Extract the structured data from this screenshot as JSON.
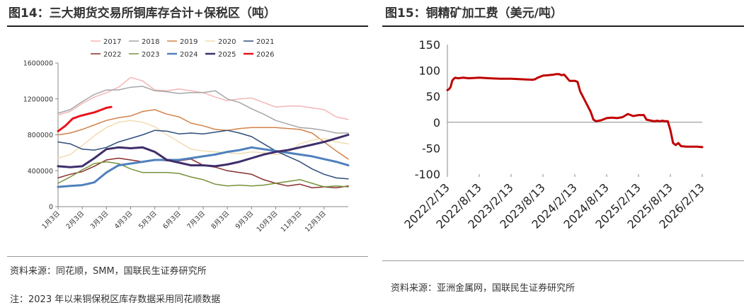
{
  "left": {
    "title": "图14：三大期货交易所铜库存合计+保税区（吨）",
    "source": "资料来源：同花顺，SMM，国联民生证券研究所",
    "note": "注：2023 年以来铜保税区库存数据采用同花顺数据",
    "chart_data": {
      "type": "line",
      "title": "",
      "xlabel": "",
      "ylabel": "",
      "ylim": [
        0,
        1600000
      ],
      "yticks": [
        0,
        400000,
        800000,
        1200000,
        1600000
      ],
      "ytick_labels": [
        "0",
        "400000",
        "800000",
        "1200000",
        "1600000"
      ],
      "xlim": [
        0,
        12
      ],
      "xticks": [
        0,
        1,
        2,
        3,
        4,
        5,
        6,
        7,
        8,
        9,
        10,
        11
      ],
      "xtick_labels": [
        "1月3日",
        "2月3日",
        "3月3日",
        "4月3日",
        "5月3日",
        "6月3日",
        "7月3日",
        "8月3日",
        "9月3日",
        "10月3日",
        "11月3日",
        "12月3日"
      ],
      "legend_position": "top",
      "series": [
        {
          "name": "2017",
          "color": "#f4b6b6",
          "width": 1.5,
          "x": [
            0,
            0.5,
            1,
            1.5,
            2,
            2.5,
            3,
            3.5,
            4,
            4.5,
            5,
            5.5,
            6,
            6.5,
            7,
            7.5,
            8,
            8.5,
            9,
            9.5,
            10,
            10.5,
            11,
            11.5,
            12
          ],
          "y": [
            1020000,
            1060000,
            1150000,
            1220000,
            1270000,
            1330000,
            1440000,
            1400000,
            1300000,
            1290000,
            1310000,
            1290000,
            1270000,
            1220000,
            1180000,
            1200000,
            1210000,
            1160000,
            1110000,
            1120000,
            1120000,
            1100000,
            1080000,
            1000000,
            970000
          ]
        },
        {
          "name": "2018",
          "color": "#a6a6a6",
          "width": 1.5,
          "x": [
            0,
            0.5,
            1,
            1.5,
            2,
            2.5,
            3,
            3.5,
            4,
            4.5,
            5,
            5.5,
            6,
            6.5,
            7,
            7.5,
            8,
            8.5,
            9,
            9.5,
            10,
            10.5,
            11,
            11.5,
            12
          ],
          "y": [
            1040000,
            1080000,
            1170000,
            1250000,
            1300000,
            1300000,
            1330000,
            1340000,
            1290000,
            1280000,
            1260000,
            1270000,
            1270000,
            1290000,
            1200000,
            1160000,
            1090000,
            1030000,
            960000,
            920000,
            880000,
            870000,
            850000,
            820000,
            820000
          ]
        },
        {
          "name": "2019",
          "color": "#d2824a",
          "width": 1.5,
          "x": [
            0,
            0.5,
            1,
            1.5,
            2,
            2.5,
            3,
            3.5,
            4,
            4.5,
            5,
            5.5,
            6,
            6.5,
            7,
            7.5,
            8,
            8.5,
            9,
            9.5,
            10,
            10.5,
            11,
            11.5,
            12
          ],
          "y": [
            800000,
            820000,
            860000,
            910000,
            960000,
            990000,
            1010000,
            1060000,
            1080000,
            1030000,
            1000000,
            930000,
            900000,
            860000,
            850000,
            870000,
            880000,
            880000,
            880000,
            870000,
            860000,
            820000,
            720000,
            620000,
            530000
          ]
        },
        {
          "name": "2020",
          "color": "#f2dcb2",
          "width": 1.5,
          "x": [
            0,
            0.5,
            1,
            1.5,
            2,
            2.5,
            3,
            3.5,
            4,
            4.5,
            5,
            5.5,
            6,
            6.5,
            7,
            7.5,
            8,
            8.5,
            9,
            9.5,
            10,
            10.5,
            11,
            11.5,
            12
          ],
          "y": [
            540000,
            580000,
            680000,
            790000,
            880000,
            940000,
            960000,
            940000,
            890000,
            800000,
            720000,
            640000,
            620000,
            610000,
            600000,
            590000,
            610000,
            600000,
            580000,
            600000,
            700000,
            740000,
            760000,
            720000,
            700000
          ]
        },
        {
          "name": "2021",
          "color": "#2e4d7b",
          "width": 1.5,
          "x": [
            0,
            0.5,
            1,
            1.5,
            2,
            2.5,
            3,
            3.5,
            4,
            4.5,
            5,
            5.5,
            6,
            6.5,
            7,
            7.5,
            8,
            8.5,
            9,
            9.5,
            10,
            10.5,
            11,
            11.5,
            12
          ],
          "y": [
            720000,
            700000,
            640000,
            630000,
            660000,
            720000,
            760000,
            800000,
            850000,
            840000,
            810000,
            820000,
            810000,
            830000,
            850000,
            820000,
            780000,
            700000,
            620000,
            560000,
            500000,
            420000,
            360000,
            320000,
            310000
          ]
        },
        {
          "name": "2022",
          "color": "#8b2e2e",
          "width": 1.5,
          "x": [
            0,
            0.5,
            1,
            1.5,
            2,
            2.5,
            3,
            3.5,
            4,
            4.5,
            5,
            5.5,
            6,
            6.5,
            7,
            7.5,
            8,
            8.5,
            9,
            9.5,
            10,
            10.5,
            11,
            11.5,
            12
          ],
          "y": [
            320000,
            360000,
            390000,
            450000,
            520000,
            540000,
            520000,
            500000,
            520000,
            510000,
            510000,
            530000,
            460000,
            440000,
            400000,
            380000,
            360000,
            300000,
            260000,
            230000,
            250000,
            210000,
            220000,
            210000,
            230000
          ]
        },
        {
          "name": "2023",
          "color": "#77933c",
          "width": 1.5,
          "x": [
            0,
            0.5,
            1,
            1.5,
            2,
            2.5,
            3,
            3.5,
            4,
            4.5,
            5,
            5.5,
            6,
            6.5,
            7,
            7.5,
            8,
            8.5,
            9,
            9.5,
            10,
            10.5,
            11,
            11.5,
            12
          ],
          "y": [
            260000,
            330000,
            410000,
            480000,
            500000,
            480000,
            420000,
            380000,
            380000,
            380000,
            370000,
            330000,
            300000,
            250000,
            230000,
            240000,
            230000,
            240000,
            260000,
            280000,
            300000,
            260000,
            220000,
            230000,
            220000
          ]
        },
        {
          "name": "2024",
          "color": "#4f81bd",
          "width": 3,
          "x": [
            0,
            0.5,
            1,
            1.5,
            2,
            2.5,
            3,
            3.5,
            4,
            4.5,
            5,
            5.5,
            6,
            6.5,
            7,
            7.5,
            8,
            8.5,
            9,
            9.5,
            10,
            10.5,
            11,
            11.5,
            12
          ],
          "y": [
            220000,
            230000,
            240000,
            270000,
            380000,
            460000,
            480000,
            500000,
            520000,
            520000,
            520000,
            540000,
            560000,
            580000,
            610000,
            630000,
            660000,
            640000,
            620000,
            600000,
            580000,
            560000,
            530000,
            500000,
            460000
          ]
        },
        {
          "name": "2025",
          "color": "#3f2e6b",
          "width": 3,
          "x": [
            0,
            0.5,
            1,
            1.5,
            2,
            2.5,
            3,
            3.5,
            4,
            4.5,
            5,
            5.5,
            6,
            6.5,
            7,
            7.5,
            8,
            8.5,
            9,
            9.5,
            10,
            10.5,
            11,
            11.5,
            12
          ],
          "y": [
            450000,
            440000,
            450000,
            540000,
            640000,
            660000,
            650000,
            660000,
            610000,
            520000,
            490000,
            460000,
            460000,
            450000,
            470000,
            500000,
            540000,
            580000,
            610000,
            630000,
            660000,
            690000,
            720000,
            760000,
            800000
          ]
        },
        {
          "name": "2026",
          "color": "#e8141c",
          "width": 3,
          "x": [
            0,
            0.3,
            0.6,
            0.9,
            1.2,
            1.5,
            1.8,
            2.0,
            2.2
          ],
          "y": [
            840000,
            900000,
            980000,
            1010000,
            1030000,
            1050000,
            1080000,
            1100000,
            1110000
          ]
        }
      ]
    }
  },
  "right": {
    "title": "图15：铜精矿加工费（美元/吨）",
    "source": "资料来源：亚洲金属网，国联民生证券研究所",
    "chart_data": {
      "type": "line",
      "title": "",
      "xlabel": "",
      "ylabel": "",
      "ylim": [
        -100,
        150
      ],
      "yticks": [
        -100,
        -50,
        0,
        50,
        100,
        150
      ],
      "ytick_labels": [
        "-100",
        "-50",
        "0",
        "50",
        "100",
        "150"
      ],
      "xlim": [
        0,
        48
      ],
      "xticks": [
        0,
        6,
        12,
        18,
        24,
        30,
        36,
        42,
        48
      ],
      "xtick_labels": [
        "2022/2/13",
        "2022/8/13",
        "2023/2/13",
        "2023/8/13",
        "2024/2/13",
        "2024/8/13",
        "2025/2/13",
        "2025/8/13",
        "2026/2/13"
      ],
      "series": [
        {
          "name": "铜精矿加工费",
          "color": "#c00000",
          "width": 3,
          "x": [
            0,
            0.3,
            0.6,
            0.9,
            1.2,
            1.5,
            2,
            3,
            4,
            6,
            8,
            10,
            12,
            14,
            16,
            16.5,
            17,
            18,
            19,
            20,
            20.5,
            21,
            21.5,
            22,
            23,
            24,
            24.5,
            25,
            26,
            27,
            27.5,
            28,
            29,
            30,
            31,
            32,
            33,
            34,
            35,
            36,
            37,
            37.5,
            38,
            38.5,
            39,
            39.5,
            40,
            40.5,
            41,
            41.5,
            42,
            42.5,
            43,
            43.5,
            44,
            45,
            46,
            47,
            48
          ],
          "y": [
            62,
            64,
            68,
            80,
            84,
            86,
            85,
            86,
            85,
            86,
            85,
            84,
            84,
            83,
            82,
            83,
            86,
            90,
            91,
            92,
            93,
            93,
            91,
            92,
            80,
            80,
            78,
            60,
            40,
            20,
            5,
            2,
            4,
            8,
            9,
            8,
            10,
            16,
            12,
            14,
            14,
            5,
            4,
            3,
            2,
            3,
            2,
            3,
            2,
            2,
            -15,
            -40,
            -44,
            -40,
            -46,
            -47,
            -47,
            -47,
            -48
          ]
        }
      ]
    }
  }
}
